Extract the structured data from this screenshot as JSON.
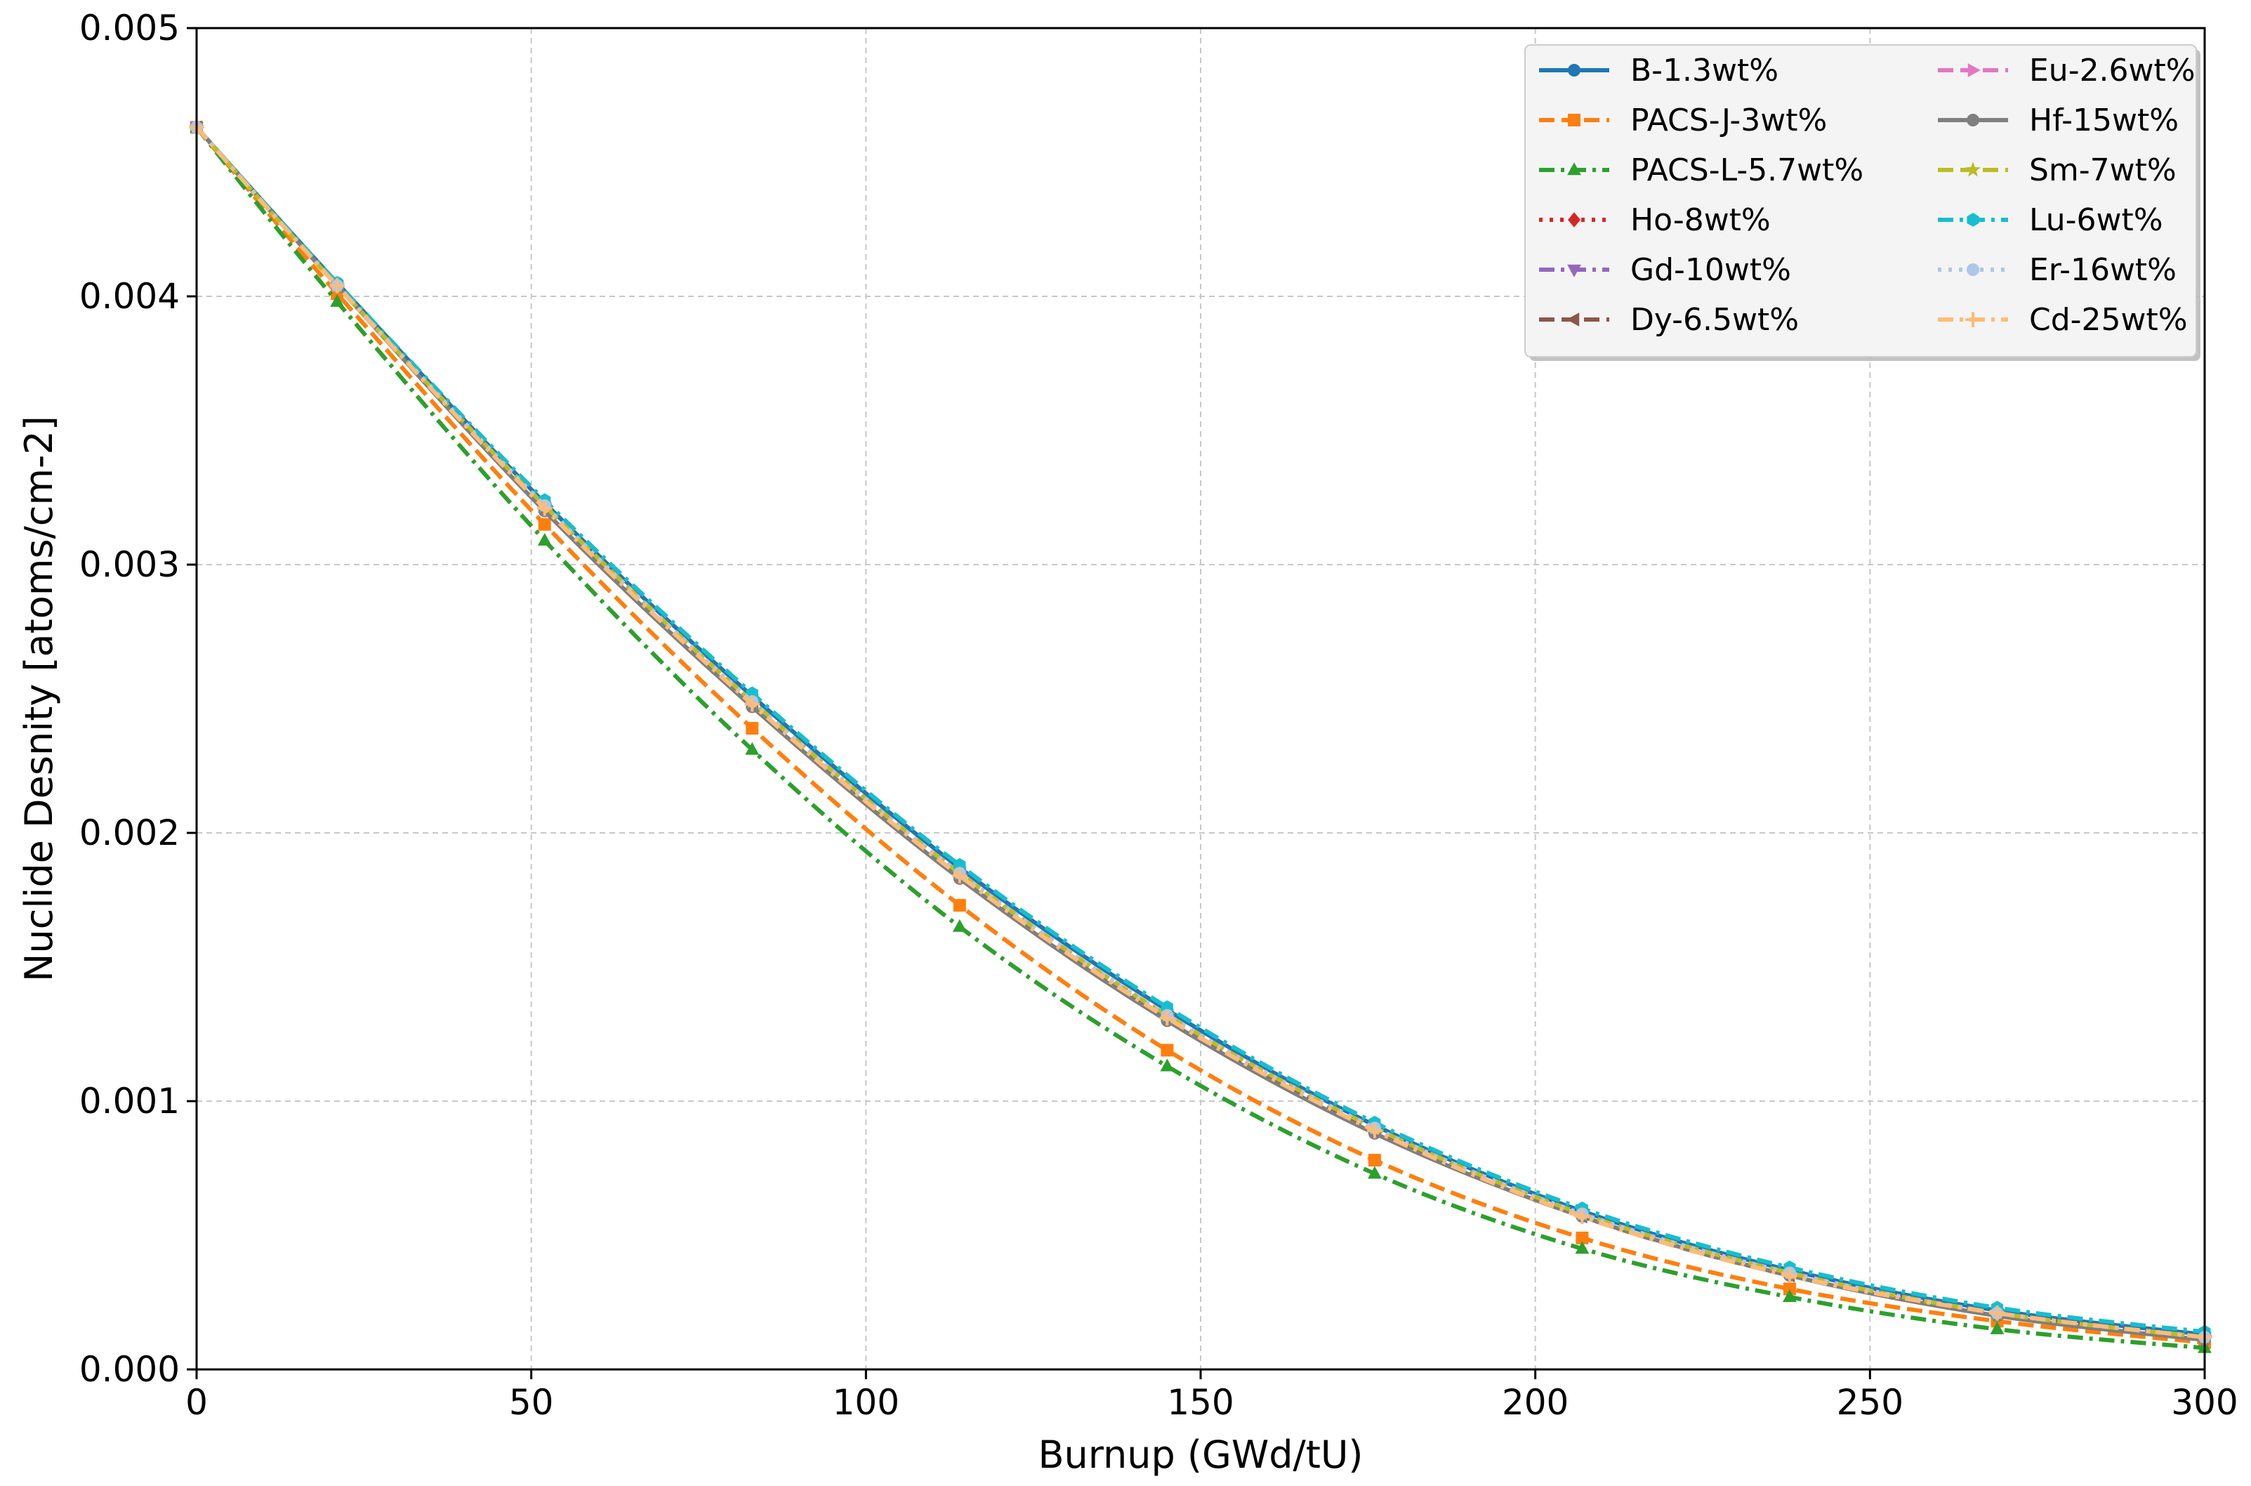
{
  "chart_data": {
    "type": "line",
    "title": "",
    "xlabel": "Burnup (GWd/tU)",
    "ylabel": "Nuclide Desnity [atoms/cm-2]",
    "xlim": [
      0,
      300
    ],
    "ylim": [
      0,
      0.005
    ],
    "x_ticks": [
      "0",
      "50",
      "100",
      "150",
      "200",
      "250",
      "300"
    ],
    "y_ticks": [
      "0.000",
      "0.001",
      "0.002",
      "0.003",
      "0.004",
      "0.005"
    ],
    "grid": true,
    "legend_position": "top-right",
    "legend_columns": 2,
    "x": [
      0,
      21,
      52,
      83,
      114,
      145,
      176,
      207,
      238,
      269,
      300
    ],
    "series": [
      {
        "name": "B-1.3wt%",
        "color": "#1f77b4",
        "dash": "solid",
        "marker": "circle",
        "values": [
          0.00463,
          0.00405,
          0.00323,
          0.00251,
          0.00187,
          0.00134,
          0.00091,
          0.00059,
          0.00037,
          0.00022,
          0.00013
        ]
      },
      {
        "name": "PACS-J-3wt%",
        "color": "#ff7f0e",
        "dash": "dashed",
        "marker": "square",
        "values": [
          0.00463,
          0.00401,
          0.00315,
          0.00239,
          0.00173,
          0.00119,
          0.00078,
          0.00049,
          0.0003,
          0.00018,
          0.0001
        ]
      },
      {
        "name": "PACS-L-5.7wt%",
        "color": "#2ca02c",
        "dash": "dashdot",
        "marker": "triangle-up",
        "values": [
          0.00463,
          0.00398,
          0.00309,
          0.00231,
          0.00165,
          0.00113,
          0.00073,
          0.00045,
          0.00027,
          0.00015,
          8e-05
        ]
      },
      {
        "name": "Ho-8wt%",
        "color": "#d62728",
        "dash": "dotted",
        "marker": "diamond",
        "values": [
          0.00463,
          0.00404,
          0.00322,
          0.00249,
          0.00185,
          0.00132,
          0.0009,
          0.00058,
          0.00036,
          0.00021,
          0.00012
        ]
      },
      {
        "name": "Gd-10wt%",
        "color": "#9467bd",
        "dash": "dashdot",
        "marker": "triangle-down",
        "values": [
          0.00463,
          0.00404,
          0.00321,
          0.00248,
          0.00184,
          0.00131,
          0.00089,
          0.00057,
          0.00035,
          0.00021,
          0.00012
        ]
      },
      {
        "name": "Dy-6.5wt%",
        "color": "#8c564b",
        "dash": "dashed",
        "marker": "triangle-left",
        "values": [
          0.00463,
          0.00404,
          0.00321,
          0.00248,
          0.00184,
          0.00131,
          0.00089,
          0.00057,
          0.00035,
          0.00021,
          0.00012
        ]
      },
      {
        "name": "Eu-2.6wt%",
        "color": "#e377c2",
        "dash": "dashed",
        "marker": "triangle-right",
        "values": [
          0.00463,
          0.00404,
          0.00322,
          0.00249,
          0.00185,
          0.00132,
          0.0009,
          0.00058,
          0.00036,
          0.00021,
          0.00012
        ]
      },
      {
        "name": "Hf-15wt%",
        "color": "#7f7f7f",
        "dash": "solid",
        "marker": "circle",
        "values": [
          0.00463,
          0.00404,
          0.0032,
          0.00247,
          0.00183,
          0.0013,
          0.00088,
          0.00057,
          0.00035,
          0.0002,
          0.00011
        ]
      },
      {
        "name": "Sm-7wt%",
        "color": "#bcbd22",
        "dash": "dashed",
        "marker": "star",
        "values": [
          0.00463,
          0.00404,
          0.00322,
          0.00249,
          0.00185,
          0.00132,
          0.0009,
          0.00058,
          0.00036,
          0.00021,
          0.00012
        ]
      },
      {
        "name": "Lu-6wt%",
        "color": "#17becf",
        "dash": "dashdot",
        "marker": "hexagon",
        "values": [
          0.00463,
          0.00405,
          0.00324,
          0.00252,
          0.00188,
          0.00135,
          0.00092,
          0.0006,
          0.00038,
          0.00023,
          0.00014
        ]
      },
      {
        "name": "Er-16wt%",
        "color": "#aec7e8",
        "dash": "dotted",
        "marker": "circle",
        "values": [
          0.00463,
          0.00404,
          0.00322,
          0.00249,
          0.00185,
          0.00132,
          0.0009,
          0.00058,
          0.00036,
          0.00021,
          0.00012
        ]
      },
      {
        "name": "Cd-25wt%",
        "color": "#ffbb78",
        "dash": "dashdot",
        "marker": "plus",
        "values": [
          0.00463,
          0.00404,
          0.00321,
          0.00248,
          0.00184,
          0.00131,
          0.00089,
          0.00057,
          0.00035,
          0.00021,
          0.00012
        ]
      }
    ]
  }
}
